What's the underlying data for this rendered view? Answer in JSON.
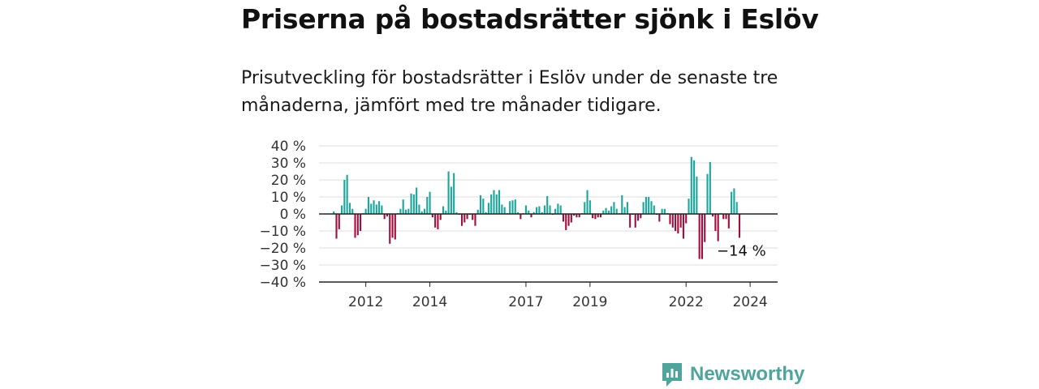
{
  "title": "Priserna på bostadsrätter sjönk i Eslöv",
  "subtitle": "Prisutveckling för bostadsrätter i Eslöv under de senaste tre månaderna, jämfört med tre månader tidigare.",
  "brand": {
    "name": "Newsworthy",
    "icon": "newsworthy-logo-icon"
  },
  "colors": {
    "positive": "#19a69b",
    "negative": "#a10d3c",
    "grid": "#dddddd",
    "zero": "#222222",
    "brand": "#4fa49c"
  },
  "chart_data": {
    "type": "bar",
    "title": "",
    "xlabel": "",
    "ylabel": "",
    "ylim": [
      -40,
      40
    ],
    "grid": true,
    "yticks": [
      {
        "value": 40,
        "label": "40 %"
      },
      {
        "value": 30,
        "label": "30 %"
      },
      {
        "value": 20,
        "label": "20 %"
      },
      {
        "value": 10,
        "label": "10 %"
      },
      {
        "value": 0,
        "label": "0 %"
      },
      {
        "value": -10,
        "label": "−10 %"
      },
      {
        "value": -20,
        "label": "−20 %"
      },
      {
        "value": -30,
        "label": "−30 %"
      },
      {
        "value": -40,
        "label": "−40 %"
      }
    ],
    "start": "2011-01",
    "xticks": [
      {
        "month": "2012-01",
        "label": "2012"
      },
      {
        "month": "2014-01",
        "label": "2014"
      },
      {
        "month": "2017-01",
        "label": "2017"
      },
      {
        "month": "2019-01",
        "label": "2019"
      },
      {
        "month": "2022-01",
        "label": "2022"
      },
      {
        "month": "2024-01",
        "label": "2024"
      }
    ],
    "annotation": {
      "label": "−14 %",
      "value": -14
    },
    "values": [
      1.5,
      -14.5,
      -9,
      5,
      20,
      23,
      6.5,
      3,
      -14,
      -12.5,
      -10,
      0.5,
      3,
      10,
      6,
      8,
      5.5,
      7.5,
      5,
      -3,
      -1.5,
      -17.5,
      -14,
      -15,
      0.5,
      3,
      8.5,
      2.5,
      3,
      12,
      11.5,
      15.5,
      5.5,
      1.5,
      3,
      10,
      13,
      -2,
      -8,
      -9,
      -3.5,
      4.5,
      2,
      25,
      16,
      24,
      1,
      -0.5,
      -7,
      -5,
      -3,
      -0.5,
      -3.5,
      -7,
      2.5,
      11,
      9,
      1,
      6.5,
      11.5,
      14,
      11.5,
      14,
      5.5,
      4,
      0.5,
      7.5,
      8,
      8.5,
      1,
      -3,
      0.5,
      5,
      2,
      -2,
      1,
      4,
      4.5,
      1,
      5,
      10.5,
      5,
      -0.5,
      3,
      6,
      5,
      -4.5,
      -9.5,
      -7,
      -5,
      -1,
      -2,
      -2,
      0.5,
      7,
      14,
      8,
      -2.5,
      -3,
      -2,
      -2,
      2,
      3.5,
      2,
      4.5,
      7,
      3,
      0.5,
      11,
      4,
      7,
      -8,
      -0.5,
      -8,
      -4,
      -2.5,
      7,
      10,
      10,
      7.5,
      5,
      -0.5,
      -4.5,
      3,
      3,
      0.5,
      -6,
      -8,
      -10,
      -11.5,
      -8,
      -14.5,
      -5.5,
      9,
      33.5,
      31.5,
      22,
      -26.5,
      -26.5,
      -16.5,
      23.5,
      30.5,
      -1.5,
      -10,
      -16,
      0.5,
      -3,
      -3,
      -8.5,
      13,
      15,
      7,
      -14
    ]
  }
}
